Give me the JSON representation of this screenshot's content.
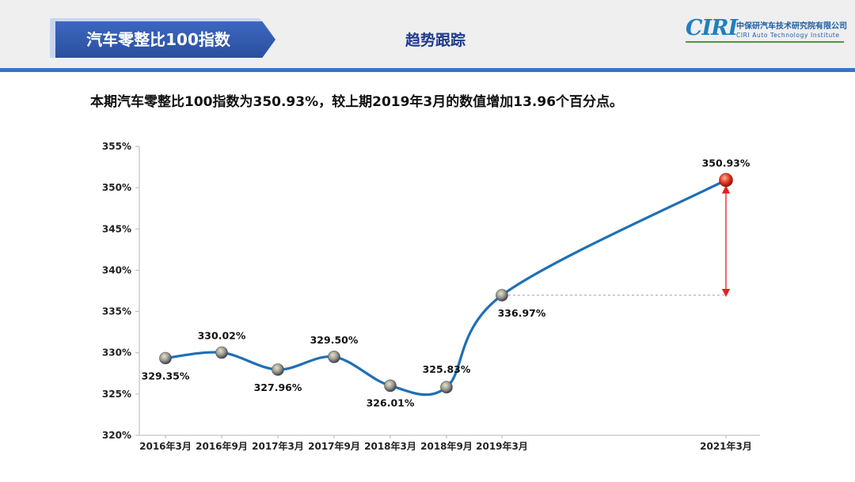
{
  "header": {
    "tab_title": "汽车零整比100指数",
    "section_title": "趋势跟踪",
    "logo": {
      "mark": "CIRI",
      "name_cn": "中保研汽车技术研究院有限公司",
      "name_en": "CIRI Auto Technology Institute"
    }
  },
  "summary": "本期汽车零整比100指数为350.93%，较上期2019年3月的数值增加13.96个百分点。",
  "colors": {
    "line": "#1f6fb5",
    "accent_band": "#3c74c4",
    "title_tab": "#2a4f9e",
    "highlight_point": "#d9281f",
    "arrow": "#e02020"
  },
  "chart_data": {
    "type": "line",
    "title": "",
    "xlabel": "",
    "ylabel": "",
    "categories": [
      "2016年3月",
      "2016年9月",
      "2017年3月",
      "2017年9月",
      "2018年3月",
      "2018年9月",
      "2019年3月",
      "2021年3月"
    ],
    "values": [
      329.35,
      330.02,
      327.96,
      329.5,
      326.01,
      325.83,
      336.97,
      350.93
    ],
    "data_labels": [
      "329.35%",
      "330.02%",
      "327.96%",
      "329.50%",
      "326.01%",
      "325.83%",
      "336.97%",
      "350.93%"
    ],
    "ylim": [
      320,
      355
    ],
    "yticks": [
      320,
      325,
      330,
      335,
      340,
      345,
      350,
      355
    ],
    "ytick_labels": [
      "320%",
      "325%",
      "330%",
      "335%",
      "340%",
      "345%",
      "350%",
      "355%"
    ],
    "grid": false,
    "legend": "none",
    "annotation": {
      "type": "double-arrow",
      "from_category": "2019年3月",
      "to_category": "2021年3月",
      "delta": 13.96
    }
  }
}
